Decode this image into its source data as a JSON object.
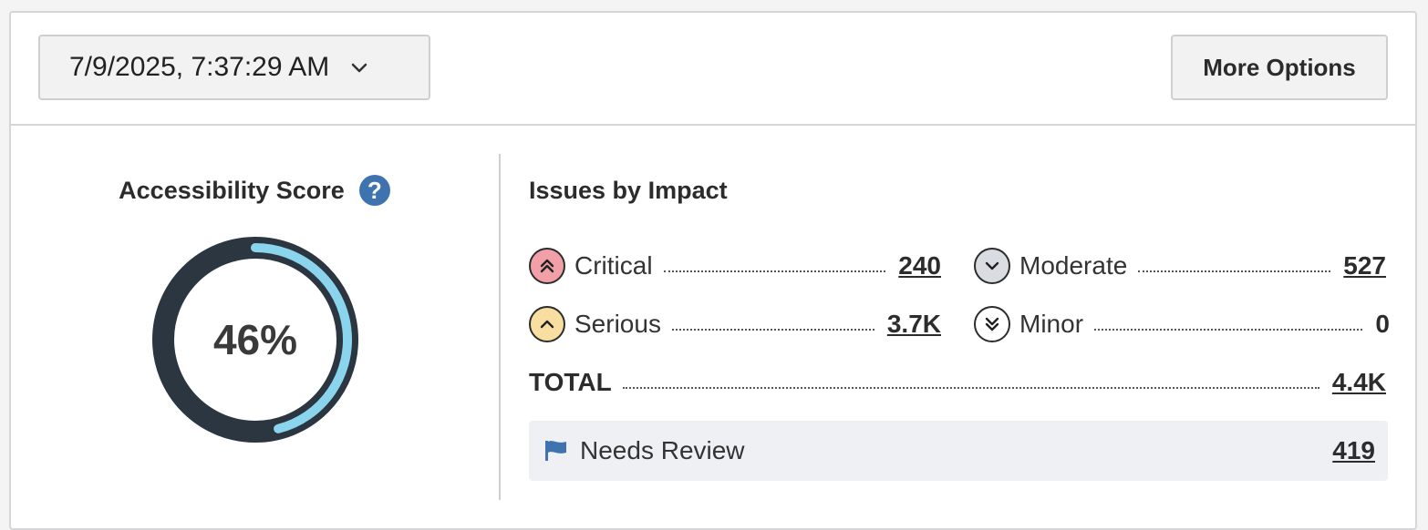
{
  "header": {
    "date_value": "7/9/2025, 7:37:29 AM",
    "more_options_label": "More Options"
  },
  "score": {
    "title": "Accessibility Score",
    "help_glyph": "?",
    "percent_label": "46%",
    "percent_value": 46,
    "colors": {
      "fill": "#8ad4ee",
      "track": "#2b3640"
    }
  },
  "impact": {
    "title": "Issues by Impact",
    "critical": {
      "label": "Critical",
      "value": "240",
      "icon": "double-chevron-up-icon",
      "color": "#f1a0a8"
    },
    "moderate": {
      "label": "Moderate",
      "value": "527",
      "icon": "chevron-down-icon",
      "color": "#d9dde2"
    },
    "serious": {
      "label": "Serious",
      "value": "3.7K",
      "icon": "chevron-up-icon",
      "color": "#f8dea0"
    },
    "minor": {
      "label": "Minor",
      "value": "0",
      "icon": "double-chevron-down-icon",
      "color": "#ffffff"
    },
    "total": {
      "label": "TOTAL",
      "value": "4.4K"
    }
  },
  "needs_review": {
    "label": "Needs Review",
    "value": "419",
    "icon": "flag-icon",
    "icon_color": "#3f73b0"
  }
}
